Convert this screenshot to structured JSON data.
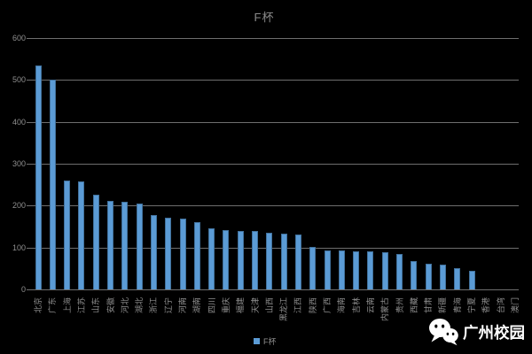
{
  "title": "F杯",
  "legend": {
    "label": "F杯",
    "swatch_color": "#5B9BD5"
  },
  "watermark": {
    "text": "广州校园",
    "icon": "wechat-logo"
  },
  "colors": {
    "background": "#000000",
    "bar_fill": "#5B9BD5",
    "bar_border": "#41719C",
    "gridline": "#6E6E6E",
    "axis_text": "#8F8F8F",
    "title_text": "#8A8A8A",
    "watermark_text": "#FFFFFF"
  },
  "chart_data": {
    "type": "bar",
    "title": "F杯",
    "xlabel": "",
    "ylabel": "",
    "ylim": [
      0,
      600
    ],
    "yticks": [
      0,
      100,
      200,
      300,
      400,
      500,
      600
    ],
    "grid": true,
    "legend_entries": [
      "F杯"
    ],
    "legend_position": "bottom-center",
    "categories": [
      "北京",
      "广东",
      "上海",
      "江苏",
      "山东",
      "安徽",
      "河北",
      "湖北",
      "浙江",
      "辽宁",
      "河南",
      "湖南",
      "四川",
      "重庆",
      "福建",
      "天津",
      "山西",
      "黑龙江",
      "江西",
      "陕西",
      "广西",
      "海南",
      "吉林",
      "云南",
      "内蒙古",
      "贵州",
      "西藏",
      "甘肃",
      "新疆",
      "青海",
      "宁夏",
      "香港",
      "台湾",
      "澳门"
    ],
    "values": [
      535,
      500,
      260,
      258,
      226,
      212,
      209,
      204,
      178,
      171,
      168,
      160,
      146,
      142,
      140,
      139,
      135,
      134,
      132,
      101,
      93,
      92,
      91,
      90,
      89,
      85,
      68,
      61,
      59,
      51,
      45,
      0,
      0,
      0
    ]
  }
}
